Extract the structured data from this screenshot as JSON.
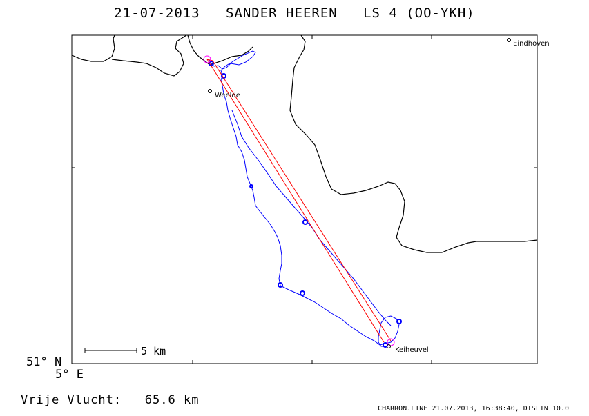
{
  "title": "21-07-2013   SANDER HEEREN   LS 4 (OO-YKH)",
  "axes": {
    "lat_label": "51° N",
    "lon_label": "5° E"
  },
  "places": [
    {
      "name": "Eindhoven"
    },
    {
      "name": "Weelde"
    },
    {
      "name": "Keiheuvel"
    }
  ],
  "scale_bar": {
    "label": "5 km"
  },
  "distance": {
    "label": "Vrije Vlucht:",
    "value": "65.6 km"
  },
  "footer": "CHARRON.LINE 21.07.2013, 16:38:40, DISLIN 10.0",
  "colors": {
    "track": "#0000ff",
    "task_line": "#ff0000",
    "turnpoint": "#ff00ff",
    "border": "#000000"
  }
}
